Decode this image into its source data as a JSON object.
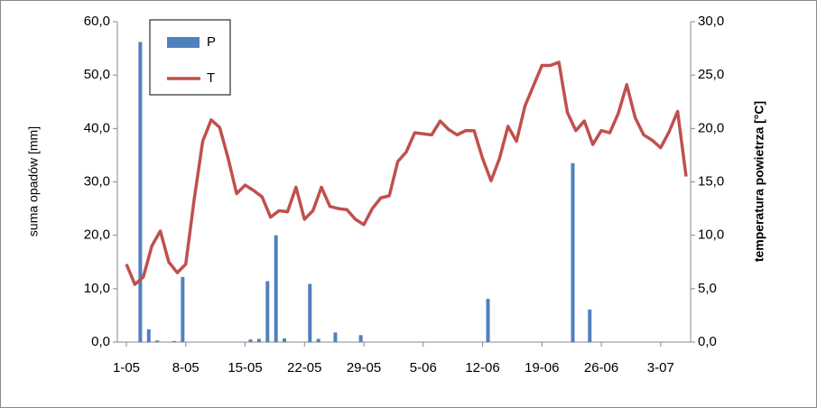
{
  "chart_data": {
    "type": "bar-line",
    "y_label": "suma opadów [mm]",
    "y2_label": "temperatura powietrza [°C]",
    "categories": [
      "1-05",
      null,
      null,
      null,
      null,
      null,
      null,
      "8-05",
      null,
      null,
      null,
      null,
      null,
      null,
      "15-05",
      null,
      null,
      null,
      null,
      null,
      null,
      "22-05",
      null,
      null,
      null,
      null,
      null,
      null,
      "29-05",
      null,
      null,
      null,
      null,
      null,
      null,
      "5-06",
      null,
      null,
      null,
      null,
      null,
      null,
      "12-06",
      null,
      null,
      null,
      null,
      null,
      null,
      "19-06",
      null,
      null,
      null,
      null,
      null,
      null,
      "26-06",
      null,
      null,
      null,
      null,
      null,
      null,
      "3-07",
      null,
      null,
      null
    ],
    "series": [
      {
        "name": "P",
        "color": "#4f81bd",
        "kind": "bar",
        "axis": "y",
        "values": [
          0,
          56.2,
          2.4,
          0.3,
          0,
          0.2,
          12.2,
          0,
          0,
          0,
          0,
          0,
          0,
          0,
          0.5,
          0.6,
          11.4,
          20.0,
          0.7,
          0,
          0,
          10.9,
          0.6,
          0,
          1.8,
          0,
          0,
          1.3,
          0,
          0,
          0,
          0,
          0,
          0,
          0,
          0,
          0,
          0,
          0,
          0,
          0,
          0,
          8.1,
          0,
          0,
          0,
          0,
          0,
          0,
          0,
          0,
          0,
          33.5,
          0,
          6.1,
          0,
          0,
          0,
          0,
          0,
          0,
          0,
          0,
          0,
          0,
          0,
          0
        ]
      },
      {
        "name": "T",
        "color": "#c0504d",
        "kind": "line",
        "axis": "y2",
        "values": [
          7.3,
          5.4,
          6.1,
          9.0,
          10.4,
          7.5,
          6.5,
          7.3,
          13.4,
          18.8,
          20.8,
          20.1,
          17.2,
          13.9,
          14.7,
          14.2,
          13.6,
          11.7,
          12.3,
          12.2,
          14.5,
          11.5,
          12.3,
          14.5,
          12.7,
          12.5,
          12.4,
          11.5,
          11.0,
          12.5,
          13.5,
          13.7,
          16.9,
          17.8,
          19.6,
          19.5,
          19.4,
          20.7,
          19.9,
          19.4,
          19.8,
          19.8,
          17.2,
          15.1,
          17.2,
          20.2,
          18.8,
          22.1,
          24.0,
          25.9,
          25.9,
          26.2,
          21.5,
          19.8,
          20.7,
          18.5,
          19.8,
          19.6,
          21.4,
          24.1,
          21.0,
          19.4,
          18.9,
          18.2,
          19.7,
          21.6,
          15.5
        ]
      }
    ],
    "ylim": [
      0,
      60
    ],
    "yticks": [
      {
        "value": 0,
        "label": "0,0"
      },
      {
        "value": 10,
        "label": "10,0"
      },
      {
        "value": 20,
        "label": "20,0"
      },
      {
        "value": 30,
        "label": "30,0"
      },
      {
        "value": 40,
        "label": "40,0"
      },
      {
        "value": 50,
        "label": "50,0"
      },
      {
        "value": 60,
        "label": "60,0"
      }
    ],
    "y2lim": [
      0,
      30
    ],
    "y2ticks": [
      {
        "value": 0,
        "label": "0,0"
      },
      {
        "value": 5,
        "label": "5,0"
      },
      {
        "value": 10,
        "label": "10,0"
      },
      {
        "value": 15,
        "label": "15,0"
      },
      {
        "value": 20,
        "label": "20,0"
      },
      {
        "value": 25,
        "label": "25,0"
      },
      {
        "value": 30,
        "label": "30,0"
      }
    ],
    "legend": "top-left"
  }
}
